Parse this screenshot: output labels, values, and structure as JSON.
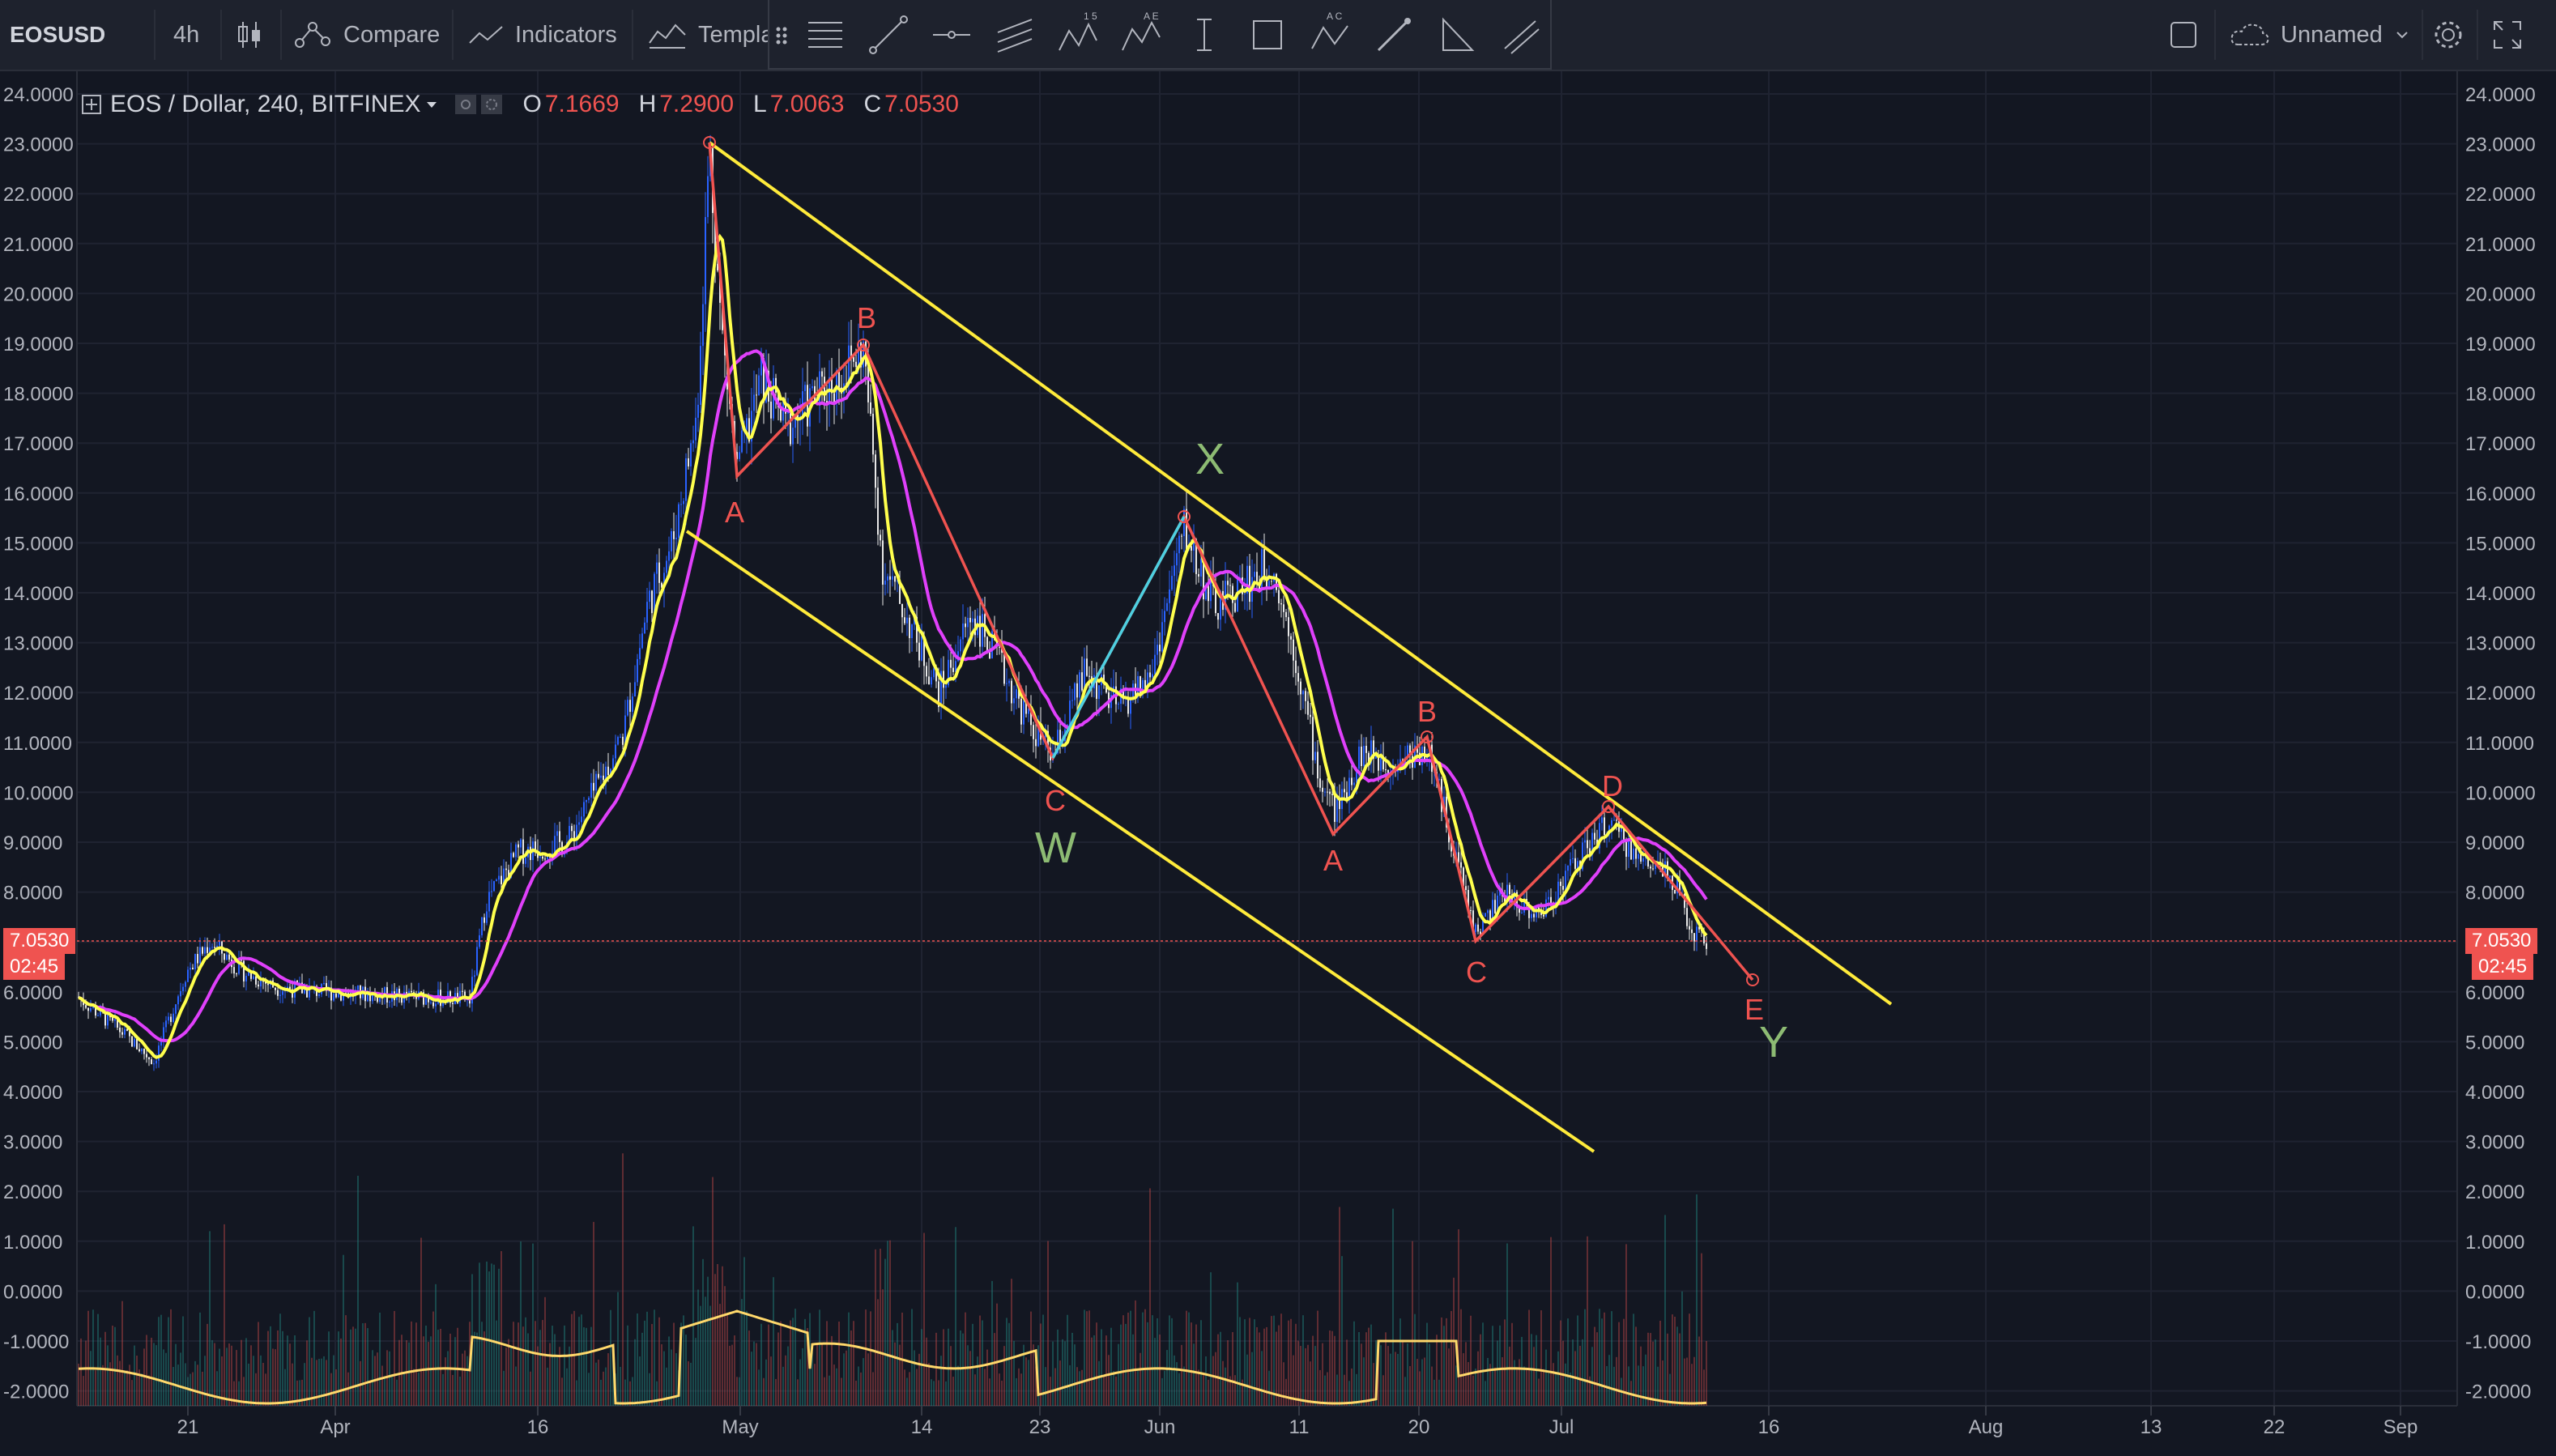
{
  "toolbar": {
    "symbol": "EOSUSD",
    "interval": "4h",
    "compare": "Compare",
    "indicators": "Indicators",
    "templates": "Templa",
    "layout_name": "Unnamed"
  },
  "legend": {
    "title": "EOS / Dollar, 240, BITFINEX",
    "o_key": "O",
    "o_val": "7.1669",
    "h_key": "H",
    "h_val": "7.2900",
    "l_key": "L",
    "l_val": "7.0063",
    "c_key": "C",
    "c_val": "7.0530"
  },
  "price_tag": {
    "price": "7.0530",
    "countdown": "02:45"
  },
  "waves": {
    "A1": "A",
    "B1": "B",
    "C1": "C",
    "W": "W",
    "X": "X",
    "A2": "A",
    "B2": "B",
    "C2": "C",
    "D": "D",
    "E": "E",
    "Y": "Y"
  },
  "colors": {
    "background": "#131722",
    "channel": "#ffeb3b",
    "wave_line": "#ef5350",
    "x_leg": "#4dd0e1",
    "fast_ma": "#ffff4d",
    "slow_ma": "#e040fb",
    "volume_ma": "#ffd86b",
    "candle_up": "#2962ff",
    "wave_label_big": "#8dbb73"
  },
  "chart_data": {
    "type": "candlestick",
    "y_ticks": [
      "24.0000",
      "23.0000",
      "22.0000",
      "21.0000",
      "20.0000",
      "19.0000",
      "18.0000",
      "17.0000",
      "16.0000",
      "15.0000",
      "14.0000",
      "13.0000",
      "12.0000",
      "11.0000",
      "10.0000",
      "9.0000",
      "8.0000",
      "7.0000",
      "6.0000",
      "5.0000",
      "4.0000",
      "3.0000",
      "2.0000",
      "1.0000",
      "0.0000",
      "-1.0000",
      "-2.0000"
    ],
    "ylim": [
      -2.3,
      24.2
    ],
    "x_ticks": [
      "21",
      "Apr",
      "16",
      "May",
      "14",
      "23",
      "Jun",
      "11",
      "20",
      "Jul",
      "16",
      "Aug",
      "13",
      "22",
      "Sep"
    ],
    "wave_points": [
      {
        "label": "A",
        "date": "Apr 29",
        "price": 23.0
      },
      {
        "label": "A",
        "date": "May 1",
        "price": 16.2
      },
      {
        "label": "B",
        "date": "May 10",
        "price": 19.0
      },
      {
        "label": "C",
        "date": "May 23",
        "price": 10.6
      },
      {
        "label": "X",
        "date": "Jun 3",
        "price": 15.5
      },
      {
        "label": "A",
        "date": "Jun 13",
        "price": 9.2
      },
      {
        "label": "B",
        "date": "Jun 19",
        "price": 11.0
      },
      {
        "label": "C",
        "date": "Jun 25",
        "price": 7.0
      },
      {
        "label": "D",
        "date": "Jul 3",
        "price": 9.6
      },
      {
        "label": "E",
        "date": "Jul 14",
        "price": 6.2
      }
    ],
    "channel_upper": [
      {
        "date": "Apr 29",
        "price": 23.0
      },
      {
        "date": "Jul 21",
        "price": 5.8
      }
    ],
    "channel_lower": [
      {
        "date": "Apr 27",
        "price": 15.2
      },
      {
        "date": "Jul 8",
        "price": 2.9
      }
    ],
    "last_close": 7.053
  }
}
